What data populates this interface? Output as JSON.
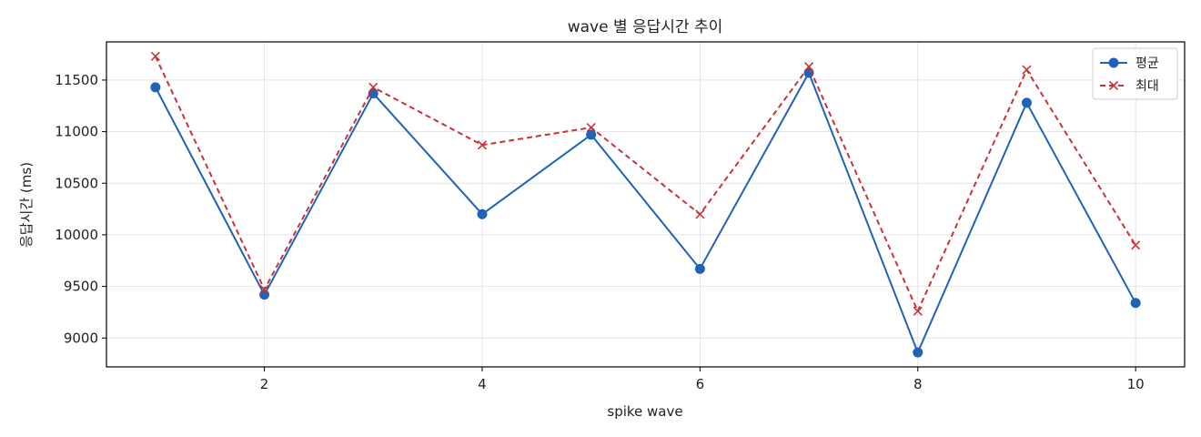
{
  "chart_data": {
    "type": "line",
    "title": "wave 별 응답시간 추이",
    "xlabel": "spike wave",
    "ylabel": "응답시간 (ms)",
    "x": [
      1,
      2,
      3,
      4,
      5,
      6,
      7,
      8,
      9,
      10
    ],
    "xlim": [
      0.55,
      10.45
    ],
    "ylim": [
      8720,
      11870
    ],
    "x_ticks": [
      2,
      4,
      6,
      8,
      10
    ],
    "y_ticks": [
      9000,
      9500,
      10000,
      10500,
      11000,
      11500
    ],
    "grid": true,
    "legend_position": "top-right",
    "series": [
      {
        "name": "평균",
        "color": "#1f63b5",
        "line_style": "solid",
        "marker": "circle",
        "values": [
          11430,
          9420,
          11370,
          10200,
          10970,
          9670,
          11570,
          8860,
          11280,
          9340
        ]
      },
      {
        "name": "최대",
        "color": "#c8323a",
        "line_style": "dashed",
        "marker": "x",
        "values": [
          11730,
          9470,
          11430,
          10870,
          11040,
          10200,
          11630,
          9260,
          11600,
          9900
        ]
      }
    ]
  }
}
